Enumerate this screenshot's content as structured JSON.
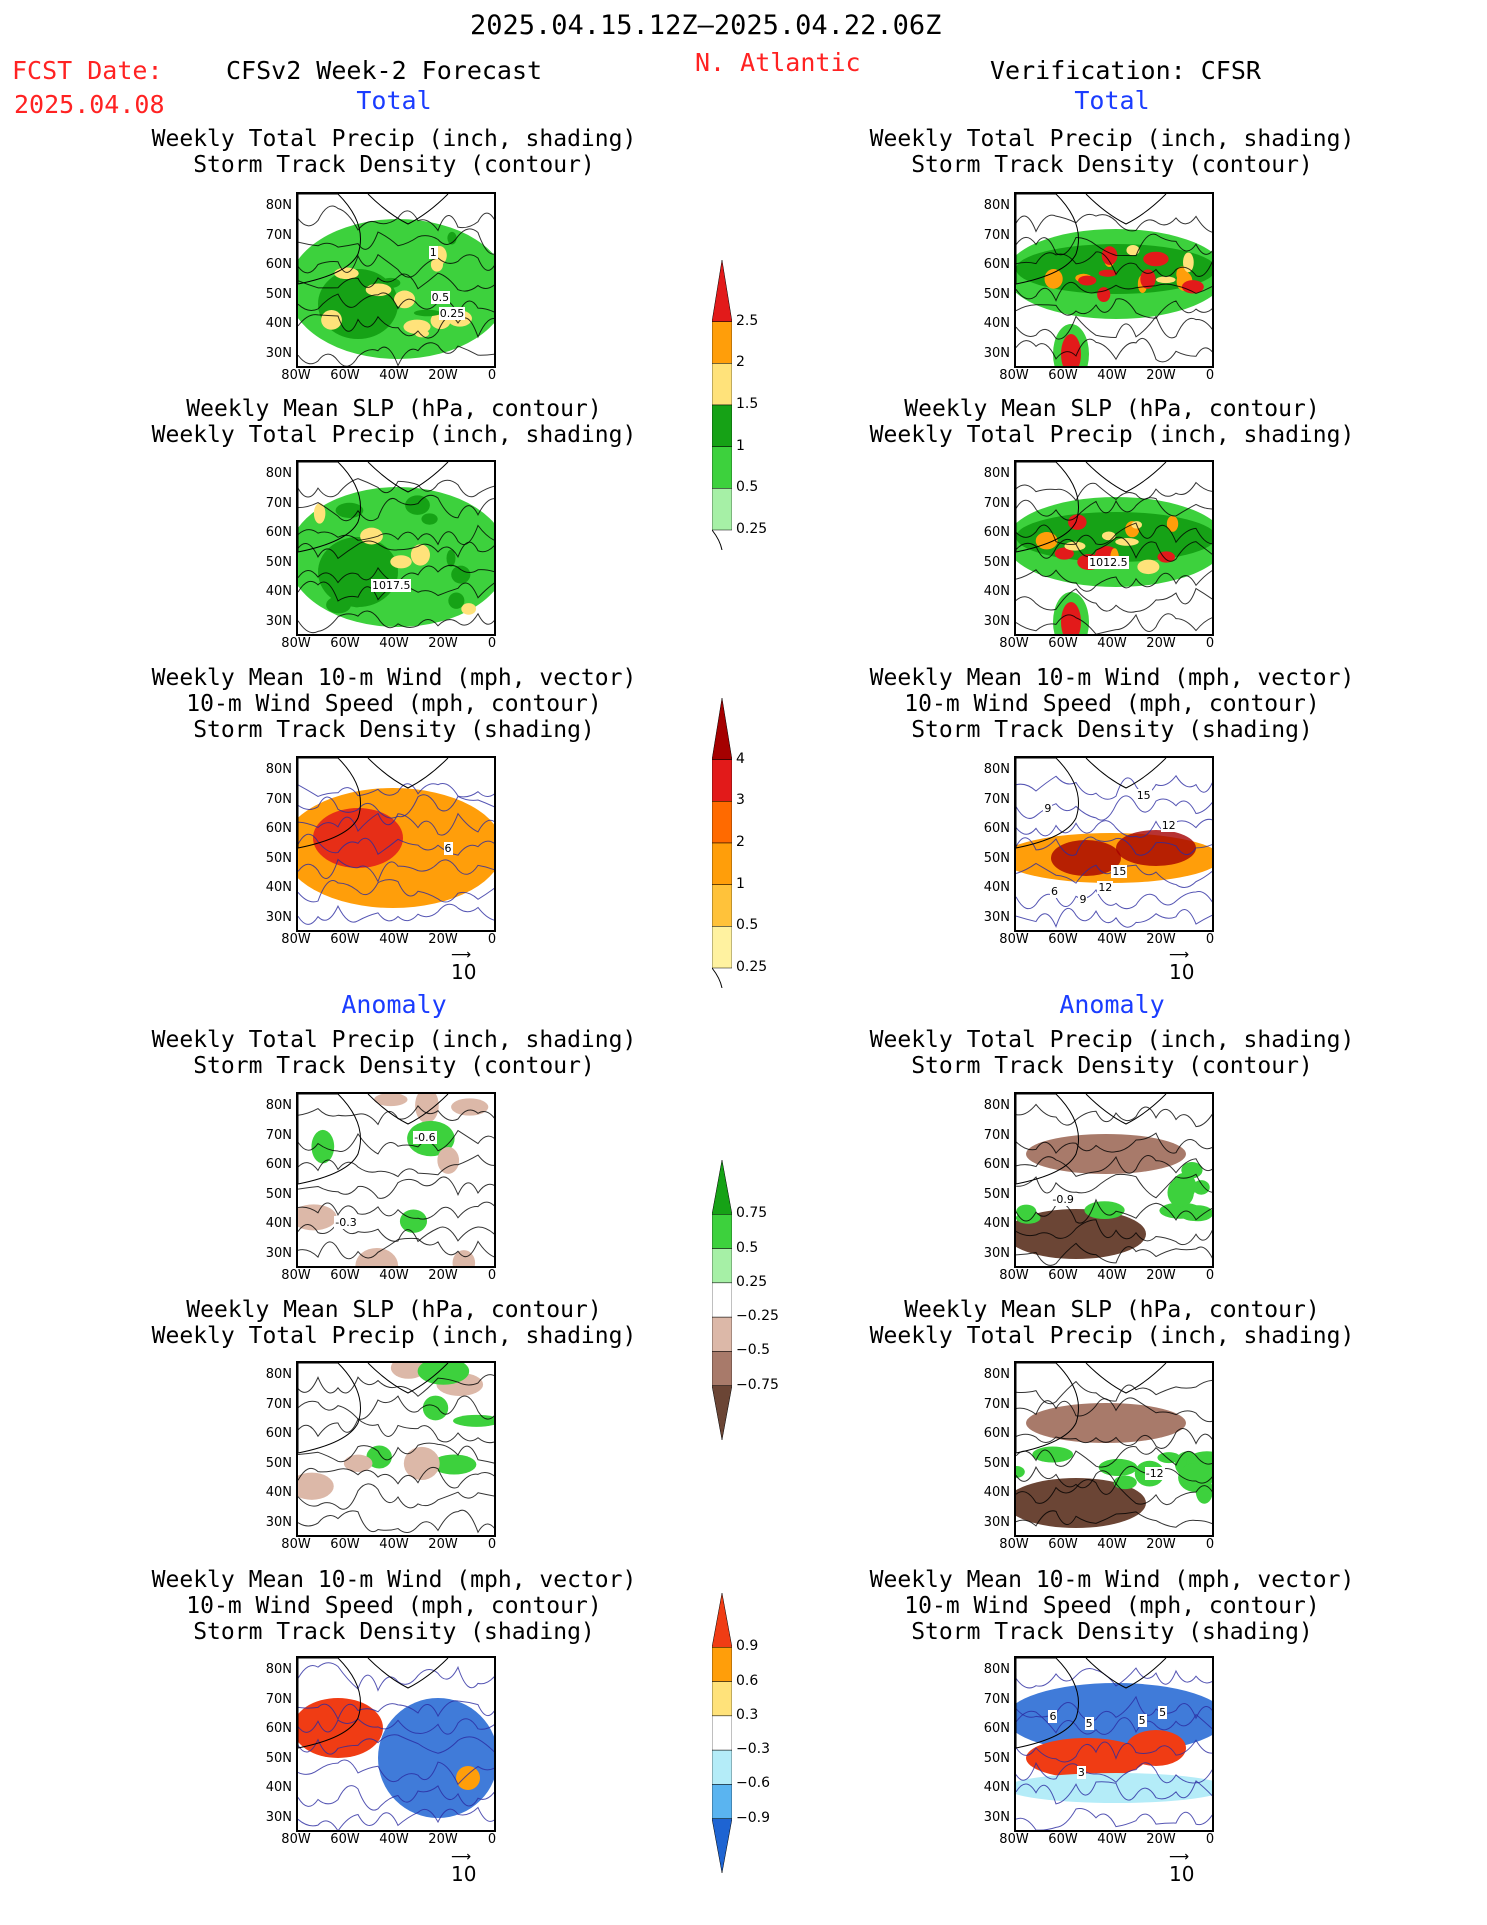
{
  "header": {
    "date_range": "2025.04.15.12Z–2025.04.22.06Z",
    "fcst_label": "FCST Date:",
    "fcst_date": "2025.04.08",
    "model": "CFSv2 Week-2 Forecast",
    "region": "N. Atlantic",
    "verification": "Verification: CFSR"
  },
  "sections": {
    "total": "Total",
    "anomaly": "Anomaly"
  },
  "titles": {
    "precip_storm": [
      "Weekly Total Precip (inch, shading)",
      "Storm Track Density (contour)"
    ],
    "slp_precip": [
      "Weekly Mean SLP (hPa, contour)",
      "Weekly Total Precip (inch, shading)"
    ],
    "wind": [
      "Weekly Mean 10-m Wind (mph, vector)",
      "10-m Wind Speed (mph, contour)",
      "Storm Track Density (shading)"
    ]
  },
  "axes": {
    "lat": [
      "80N",
      "70N",
      "60N",
      "50N",
      "40N",
      "30N"
    ],
    "lon": [
      "80W",
      "60W",
      "40W",
      "20W",
      "0"
    ]
  },
  "vector_ref": "10",
  "colorbars": {
    "precip_total": {
      "labels": [
        "2.5",
        "2",
        "1.5",
        "1",
        "0.5",
        "0.25"
      ],
      "colors": [
        "#e21a1a",
        "#ff9e0a",
        "#ffe27a",
        "#16a216",
        "#3dd13d",
        "#a6f0a6"
      ]
    },
    "storm_total": {
      "labels": [
        "4",
        "3",
        "2",
        "1",
        "0.5",
        "0.25"
      ],
      "colors": [
        "#a50000",
        "#e21a1a",
        "#ff6a00",
        "#ff9e0a",
        "#ffc23a",
        "#fff2a0"
      ]
    },
    "precip_anom": {
      "labels": [
        "0.75",
        "0.5",
        "0.25",
        "−0.25",
        "−0.5",
        "−0.75"
      ],
      "colors": [
        "#16a216",
        "#3dd13d",
        "#a6f0a6",
        "#ffffff",
        "#dcb8a8",
        "#a87a6a",
        "#6b4535"
      ]
    },
    "storm_anom": {
      "labels": [
        "0.9",
        "0.6",
        "0.3",
        "−0.3",
        "−0.6",
        "−0.9"
      ],
      "colors": [
        "#f03c14",
        "#ff9e0a",
        "#ffe27a",
        "#ffffff",
        "#b4ecf8",
        "#5ab4f0",
        "#1e64d2"
      ]
    }
  },
  "map_labels": {
    "f1": [
      "0.25",
      "0.5",
      "1"
    ],
    "f2": [
      "1017.5"
    ],
    "f3": [
      "6"
    ],
    "v2": [
      "1012.5"
    ],
    "v3": [
      "12",
      "9",
      "15",
      "6",
      "12",
      "9",
      "15"
    ],
    "fa1": [
      "-0.3",
      "-0.6"
    ],
    "va1": [
      "-0.9"
    ],
    "va2": [
      "-12"
    ],
    "va3": [
      "3",
      "5",
      "5",
      "6",
      "5"
    ]
  },
  "colors": {
    "land_grid": "#000000",
    "wind_contour": "#2a2aa0"
  }
}
